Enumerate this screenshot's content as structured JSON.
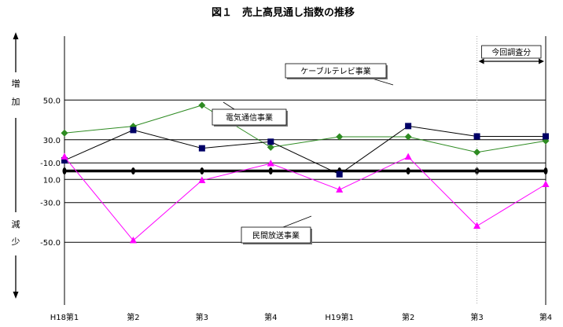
{
  "title": "図１　売上高見通し指数の推移",
  "side_label": {
    "increase_chars": [
      "増",
      "加"
    ],
    "decrease_chars": [
      "減",
      "少"
    ]
  },
  "annotation": "今回調査分",
  "chart_data": {
    "type": "line",
    "title": "図１　売上高見通し指数の推移",
    "categories": [
      "H18第1",
      "第2",
      "第3",
      "第4",
      "H19第1",
      "第2",
      "第3",
      "第4"
    ],
    "yticks": [
      "50.0",
      "30.0",
      "10.0",
      "-10.0",
      "-30.0",
      "-50.0"
    ],
    "ylim": [
      -50,
      50
    ],
    "grid": true,
    "series": [
      {
        "name": "ケーブルテレビ事業",
        "color": "#2e8b22",
        "marker": "diamond",
        "values": [
          33.4,
          36.8,
          47.4,
          26.2,
          31.5,
          31.5,
          23.7,
          29.4
        ]
      },
      {
        "name": "電気通信事業",
        "color": "#000000",
        "marker": "square",
        "values": [
          19.6,
          34.9,
          25.7,
          29.0,
          12.6,
          36.9,
          31.7,
          31.7
        ]
      },
      {
        "name": "民間放送事業",
        "color": "#ff00ff",
        "marker": "triangle",
        "values": [
          -6.9,
          -49.1,
          -18.8,
          -10.3,
          -23.5,
          -7.0,
          -41.8,
          -20.8
        ]
      }
    ]
  }
}
